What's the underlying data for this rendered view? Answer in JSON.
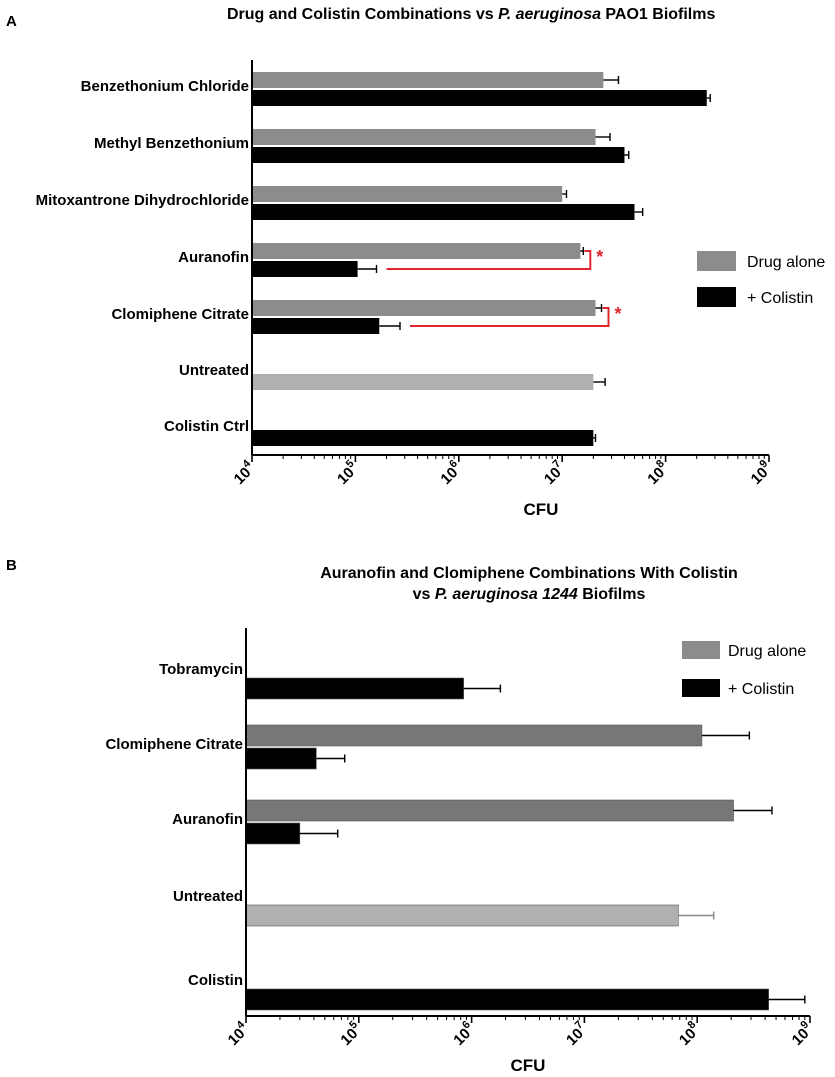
{
  "panels": {
    "a": {
      "letter": "A"
    },
    "b": {
      "letter": "B"
    }
  },
  "colors": {
    "drug_alone": "#8c8c8c",
    "drug_alone_b": "#777777",
    "untreated": "#b0b0b2",
    "colistin": "#000000",
    "significance": "#e0262c"
  },
  "chart_data": [
    {
      "type": "bar",
      "orientation": "horizontal",
      "title": "Drug and Colistin Combinations vs ",
      "title_italic": "P. aeruginosa",
      "title_suffix": " PAO1 Biofilms",
      "xlabel": "CFU",
      "ylabel": "",
      "xscale": "log",
      "xlim": [
        10000,
        1000000000
      ],
      "tick_labels": [
        "10^4",
        "10^5",
        "10^6",
        "10^7",
        "10^8",
        "10^9"
      ],
      "legend": {
        "position": "right",
        "entries": [
          "Drug alone",
          "+ Colistin"
        ]
      },
      "categories": [
        "Benzethonium Chloride",
        "Methyl Benzethonium",
        "Mitoxantrone Dihydrochloride",
        "Auranofin",
        "Clomiphene Citrate",
        "Untreated",
        "Colistin Ctrl"
      ],
      "series": [
        {
          "name": "Drug alone",
          "values": [
            25000000,
            21000000,
            10000000,
            15000000,
            21000000,
            null,
            null
          ],
          "errors_upper": [
            35000000,
            29000000,
            11000000,
            16000000,
            24000000,
            null,
            null
          ]
        },
        {
          "name": "+ Colistin",
          "values": [
            250000000,
            40000000,
            50000000,
            105000,
            170000,
            null,
            20000000
          ],
          "errors_upper": [
            270000000,
            44000000,
            60000000,
            160000,
            270000,
            null,
            21000000
          ]
        },
        {
          "name": "Untreated",
          "values": [
            null,
            null,
            null,
            null,
            null,
            20000000,
            null
          ],
          "errors_upper": [
            null,
            null,
            null,
            null,
            null,
            26000000,
            null
          ]
        }
      ],
      "annotations": [
        {
          "category": "Auranofin",
          "text": "*",
          "meaning": "significant difference between drug alone and + Colistin"
        },
        {
          "category": "Clomiphene Citrate",
          "text": "*",
          "meaning": "significant difference between drug alone and + Colistin"
        }
      ]
    },
    {
      "type": "bar",
      "orientation": "horizontal",
      "title_line1": "Auranofin and Clomiphene Combinations With Colistin",
      "title_line2_prefix": "vs ",
      "title_line2_italic": "P. aeruginosa 1244",
      "title_line2_suffix": " Biofilms",
      "xlabel": "CFU",
      "ylabel": "",
      "xscale": "log",
      "xlim": [
        10000,
        1000000000
      ],
      "tick_labels": [
        "10^4",
        "10^5",
        "10^6",
        "10^7",
        "10^8",
        "10^9"
      ],
      "legend": {
        "position": "top-right",
        "entries": [
          "Drug alone",
          "+ Colistin"
        ]
      },
      "categories": [
        "Tobramycin",
        "Clomiphene Citrate",
        "Auranofin",
        "Untreated",
        "Colistin"
      ],
      "series": [
        {
          "name": "Drug alone",
          "values": [
            null,
            110000000,
            210000000,
            null,
            null
          ],
          "errors_upper": [
            null,
            290000000,
            460000000,
            null,
            null
          ]
        },
        {
          "name": "+ Colistin",
          "values": [
            850000,
            42000,
            30000,
            null,
            430000000
          ],
          "errors_upper": [
            1800000,
            75000,
            65000,
            null,
            900000000
          ]
        },
        {
          "name": "Untreated",
          "values": [
            null,
            null,
            null,
            68000000,
            null
          ],
          "errors_upper": [
            null,
            null,
            null,
            140000000,
            null
          ]
        }
      ]
    }
  ]
}
